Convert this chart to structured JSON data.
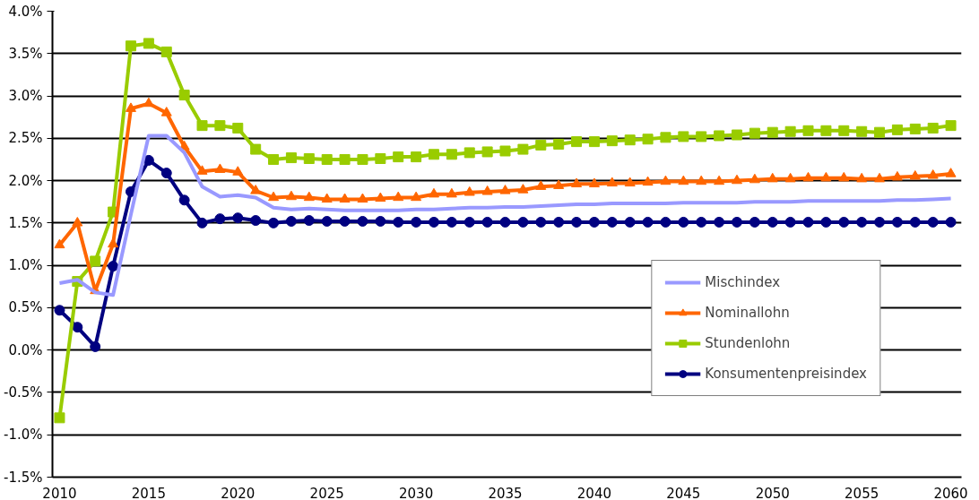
{
  "chart_data": {
    "type": "line",
    "x": [
      2010,
      2011,
      2012,
      2013,
      2014,
      2015,
      2016,
      2017,
      2018,
      2019,
      2020,
      2021,
      2022,
      2023,
      2024,
      2025,
      2026,
      2027,
      2028,
      2029,
      2030,
      2031,
      2032,
      2033,
      2034,
      2035,
      2036,
      2037,
      2038,
      2039,
      2040,
      2041,
      2042,
      2043,
      2044,
      2045,
      2046,
      2047,
      2048,
      2049,
      2050,
      2051,
      2052,
      2053,
      2054,
      2055,
      2056,
      2057,
      2058,
      2059,
      2060
    ],
    "xlim": [
      2009.6,
      2060.6
    ],
    "xticks": [
      2010,
      2015,
      2020,
      2025,
      2030,
      2035,
      2040,
      2045,
      2050,
      2055,
      2060
    ],
    "ylim": [
      -1.5,
      4.0
    ],
    "yticks": [
      {
        "value": -1.5,
        "label": "-1.5%"
      },
      {
        "value": -1,
        "label": "-1.0%"
      },
      {
        "value": -0.5,
        "label": "-0.5%"
      },
      {
        "value": 0,
        "label": "0.0%"
      },
      {
        "value": 0.5,
        "label": "0.5%"
      },
      {
        "value": 1,
        "label": "1.0%"
      },
      {
        "value": 1.5,
        "label": "1.5%"
      },
      {
        "value": 2,
        "label": "2.0%"
      },
      {
        "value": 2.5,
        "label": "2.5%"
      },
      {
        "value": 3,
        "label": "3.0%"
      },
      {
        "value": 3.5,
        "label": "3.5%"
      },
      {
        "value": 4,
        "label": "4.0%"
      }
    ],
    "grid": "y",
    "legend": "bottom right",
    "series": [
      {
        "name": "Mischindex",
        "color": "#9999ff",
        "marker": "none",
        "values": [
          0.79,
          0.83,
          0.68,
          0.65,
          1.6,
          2.53,
          2.53,
          2.33,
          1.93,
          1.81,
          1.83,
          1.8,
          1.68,
          1.66,
          1.67,
          1.66,
          1.65,
          1.65,
          1.65,
          1.65,
          1.66,
          1.66,
          1.67,
          1.68,
          1.68,
          1.69,
          1.69,
          1.7,
          1.71,
          1.72,
          1.72,
          1.73,
          1.73,
          1.73,
          1.73,
          1.74,
          1.74,
          1.74,
          1.74,
          1.75,
          1.75,
          1.75,
          1.76,
          1.76,
          1.76,
          1.76,
          1.76,
          1.77,
          1.77,
          1.78,
          1.79
        ]
      },
      {
        "name": "Nominallohn",
        "color": "#ff6600",
        "marker": "triangle",
        "values": [
          1.24,
          1.5,
          0.7,
          1.25,
          2.85,
          2.91,
          2.8,
          2.4,
          2.11,
          2.13,
          2.1,
          1.88,
          1.8,
          1.81,
          1.8,
          1.78,
          1.78,
          1.78,
          1.79,
          1.8,
          1.8,
          1.84,
          1.84,
          1.86,
          1.87,
          1.88,
          1.89,
          1.93,
          1.94,
          1.96,
          1.96,
          1.97,
          1.97,
          1.98,
          1.99,
          1.99,
          1.99,
          1.99,
          2.0,
          2.01,
          2.02,
          2.02,
          2.03,
          2.03,
          2.03,
          2.02,
          2.02,
          2.04,
          2.05,
          2.06,
          2.08
        ]
      },
      {
        "name": "Stundenlohn",
        "color": "#99cc00",
        "marker": "square",
        "values": [
          -0.8,
          0.81,
          1.05,
          1.63,
          3.59,
          3.62,
          3.52,
          3.01,
          2.65,
          2.65,
          2.62,
          2.37,
          2.25,
          2.27,
          2.26,
          2.25,
          2.25,
          2.25,
          2.26,
          2.28,
          2.28,
          2.31,
          2.31,
          2.33,
          2.34,
          2.35,
          2.37,
          2.42,
          2.43,
          2.46,
          2.46,
          2.47,
          2.48,
          2.49,
          2.51,
          2.52,
          2.52,
          2.53,
          2.54,
          2.56,
          2.57,
          2.58,
          2.59,
          2.59,
          2.59,
          2.58,
          2.57,
          2.6,
          2.61,
          2.62,
          2.65
        ]
      },
      {
        "name": "Konsumentenpreisindex",
        "color": "#000080",
        "marker": "circle",
        "values": [
          0.47,
          0.27,
          0.04,
          0.99,
          1.87,
          2.24,
          2.09,
          1.77,
          1.5,
          1.55,
          1.56,
          1.53,
          1.5,
          1.52,
          1.53,
          1.52,
          1.52,
          1.52,
          1.52,
          1.51,
          1.51,
          1.51,
          1.51,
          1.51,
          1.51,
          1.51,
          1.51,
          1.51,
          1.51,
          1.51,
          1.51,
          1.51,
          1.51,
          1.51,
          1.51,
          1.51,
          1.51,
          1.51,
          1.51,
          1.51,
          1.51,
          1.51,
          1.51,
          1.51,
          1.51,
          1.51,
          1.51,
          1.51,
          1.51,
          1.51,
          1.51
        ]
      }
    ]
  }
}
